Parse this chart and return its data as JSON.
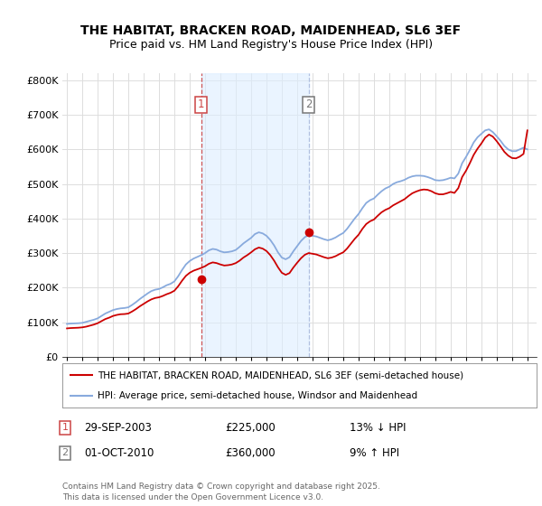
{
  "title1": "THE HABITAT, BRACKEN ROAD, MAIDENHEAD, SL6 3EF",
  "title2": "Price paid vs. HM Land Registry's House Price Index (HPI)",
  "legend_line1": "THE HABITAT, BRACKEN ROAD, MAIDENHEAD, SL6 3EF (semi-detached house)",
  "legend_line2": "HPI: Average price, semi-detached house, Windsor and Maidenhead",
  "transaction1": {
    "num": 1,
    "date": "29-SEP-2003",
    "price": 225000,
    "pct": "13%",
    "dir": "↓",
    "label": "HPI"
  },
  "transaction2": {
    "num": 2,
    "date": "01-OCT-2010",
    "price": 360000,
    "pct": "9%",
    "dir": "↑",
    "label": "HPI"
  },
  "footnote": "Contains HM Land Registry data © Crown copyright and database right 2025.\nThis data is licensed under the Open Government Licence v3.0.",
  "property_color": "#cc0000",
  "hpi_color": "#88aadd",
  "vline1_color": "#cc4444",
  "vline2_color": "#aabbdd",
  "shade_color": "#ddeeff",
  "ylim": [
    0,
    820000
  ],
  "yticks": [
    0,
    100000,
    200000,
    300000,
    400000,
    500000,
    600000,
    700000,
    800000
  ],
  "bg_color": "#ffffff",
  "grid_color": "#dddddd",
  "hpi_data": [
    [
      1995.0,
      95000
    ],
    [
      1995.25,
      96000
    ],
    [
      1995.5,
      96500
    ],
    [
      1995.75,
      97000
    ],
    [
      1996.0,
      98000
    ],
    [
      1996.25,
      101000
    ],
    [
      1996.5,
      104000
    ],
    [
      1996.75,
      107000
    ],
    [
      1997.0,
      111000
    ],
    [
      1997.25,
      118000
    ],
    [
      1997.5,
      125000
    ],
    [
      1997.75,
      130000
    ],
    [
      1998.0,
      135000
    ],
    [
      1998.25,
      138000
    ],
    [
      1998.5,
      140000
    ],
    [
      1998.75,
      141000
    ],
    [
      1999.0,
      143000
    ],
    [
      1999.25,
      150000
    ],
    [
      1999.5,
      158000
    ],
    [
      1999.75,
      167000
    ],
    [
      2000.0,
      175000
    ],
    [
      2000.25,
      183000
    ],
    [
      2000.5,
      190000
    ],
    [
      2000.75,
      194000
    ],
    [
      2001.0,
      196000
    ],
    [
      2001.25,
      201000
    ],
    [
      2001.5,
      207000
    ],
    [
      2001.75,
      211000
    ],
    [
      2002.0,
      218000
    ],
    [
      2002.25,
      233000
    ],
    [
      2002.5,
      251000
    ],
    [
      2002.75,
      267000
    ],
    [
      2003.0,
      277000
    ],
    [
      2003.25,
      284000
    ],
    [
      2003.5,
      289000
    ],
    [
      2003.75,
      294000
    ],
    [
      2004.0,
      300000
    ],
    [
      2004.25,
      308000
    ],
    [
      2004.5,
      312000
    ],
    [
      2004.75,
      310000
    ],
    [
      2005.0,
      305000
    ],
    [
      2005.25,
      302000
    ],
    [
      2005.5,
      303000
    ],
    [
      2005.75,
      305000
    ],
    [
      2006.0,
      309000
    ],
    [
      2006.25,
      318000
    ],
    [
      2006.5,
      328000
    ],
    [
      2006.75,
      336000
    ],
    [
      2007.0,
      344000
    ],
    [
      2007.25,
      355000
    ],
    [
      2007.5,
      360000
    ],
    [
      2007.75,
      357000
    ],
    [
      2008.0,
      350000
    ],
    [
      2008.25,
      338000
    ],
    [
      2008.5,
      322000
    ],
    [
      2008.75,
      302000
    ],
    [
      2009.0,
      287000
    ],
    [
      2009.25,
      282000
    ],
    [
      2009.5,
      288000
    ],
    [
      2009.75,
      305000
    ],
    [
      2010.0,
      320000
    ],
    [
      2010.25,
      335000
    ],
    [
      2010.5,
      346000
    ],
    [
      2010.75,
      352000
    ],
    [
      2011.0,
      350000
    ],
    [
      2011.25,
      348000
    ],
    [
      2011.5,
      344000
    ],
    [
      2011.75,
      340000
    ],
    [
      2012.0,
      337000
    ],
    [
      2012.25,
      340000
    ],
    [
      2012.5,
      345000
    ],
    [
      2012.75,
      352000
    ],
    [
      2013.0,
      358000
    ],
    [
      2013.25,
      370000
    ],
    [
      2013.5,
      385000
    ],
    [
      2013.75,
      400000
    ],
    [
      2014.0,
      413000
    ],
    [
      2014.25,
      430000
    ],
    [
      2014.5,
      445000
    ],
    [
      2014.75,
      453000
    ],
    [
      2015.0,
      458000
    ],
    [
      2015.25,
      469000
    ],
    [
      2015.5,
      479000
    ],
    [
      2015.75,
      487000
    ],
    [
      2016.0,
      492000
    ],
    [
      2016.25,
      500000
    ],
    [
      2016.5,
      505000
    ],
    [
      2016.75,
      508000
    ],
    [
      2017.0,
      512000
    ],
    [
      2017.25,
      518000
    ],
    [
      2017.5,
      522000
    ],
    [
      2017.75,
      524000
    ],
    [
      2018.0,
      524000
    ],
    [
      2018.25,
      523000
    ],
    [
      2018.5,
      520000
    ],
    [
      2018.75,
      516000
    ],
    [
      2019.0,
      511000
    ],
    [
      2019.25,
      510000
    ],
    [
      2019.5,
      511000
    ],
    [
      2019.75,
      514000
    ],
    [
      2020.0,
      518000
    ],
    [
      2020.25,
      516000
    ],
    [
      2020.5,
      530000
    ],
    [
      2020.75,
      560000
    ],
    [
      2021.0,
      578000
    ],
    [
      2021.25,
      598000
    ],
    [
      2021.5,
      620000
    ],
    [
      2021.75,
      635000
    ],
    [
      2022.0,
      645000
    ],
    [
      2022.25,
      655000
    ],
    [
      2022.5,
      658000
    ],
    [
      2022.75,
      650000
    ],
    [
      2023.0,
      638000
    ],
    [
      2023.25,
      625000
    ],
    [
      2023.5,
      610000
    ],
    [
      2023.75,
      600000
    ],
    [
      2024.0,
      595000
    ],
    [
      2024.25,
      595000
    ],
    [
      2024.5,
      600000
    ],
    [
      2024.75,
      605000
    ],
    [
      2025.0,
      600000
    ]
  ],
  "property_data": [
    [
      1995.0,
      82000
    ],
    [
      1995.25,
      83000
    ],
    [
      1995.5,
      83500
    ],
    [
      1995.75,
      84000
    ],
    [
      1996.0,
      85000
    ],
    [
      1996.25,
      87000
    ],
    [
      1996.5,
      90000
    ],
    [
      1996.75,
      93000
    ],
    [
      1997.0,
      97000
    ],
    [
      1997.25,
      103000
    ],
    [
      1997.5,
      109000
    ],
    [
      1997.75,
      113000
    ],
    [
      1998.0,
      118000
    ],
    [
      1998.25,
      121000
    ],
    [
      1998.5,
      123000
    ],
    [
      1998.75,
      123500
    ],
    [
      1999.0,
      125000
    ],
    [
      1999.25,
      131000
    ],
    [
      1999.5,
      138000
    ],
    [
      1999.75,
      146000
    ],
    [
      2000.0,
      153000
    ],
    [
      2000.25,
      160000
    ],
    [
      2000.5,
      166000
    ],
    [
      2000.75,
      170000
    ],
    [
      2001.0,
      172000
    ],
    [
      2001.25,
      176000
    ],
    [
      2001.5,
      181000
    ],
    [
      2001.75,
      185000
    ],
    [
      2002.0,
      191000
    ],
    [
      2002.25,
      204000
    ],
    [
      2002.5,
      220000
    ],
    [
      2002.75,
      234000
    ],
    [
      2003.0,
      243000
    ],
    [
      2003.25,
      249000
    ],
    [
      2003.5,
      253000
    ],
    [
      2003.75,
      257000
    ],
    [
      2004.0,
      262000
    ],
    [
      2004.25,
      269000
    ],
    [
      2004.5,
      273000
    ],
    [
      2004.75,
      271000
    ],
    [
      2005.0,
      267000
    ],
    [
      2005.25,
      264000
    ],
    [
      2005.5,
      265000
    ],
    [
      2005.75,
      267000
    ],
    [
      2006.0,
      271000
    ],
    [
      2006.25,
      278000
    ],
    [
      2006.5,
      287000
    ],
    [
      2006.75,
      294000
    ],
    [
      2007.0,
      302000
    ],
    [
      2007.25,
      311000
    ],
    [
      2007.5,
      316000
    ],
    [
      2007.75,
      313000
    ],
    [
      2008.0,
      306000
    ],
    [
      2008.25,
      294000
    ],
    [
      2008.5,
      278000
    ],
    [
      2008.75,
      259000
    ],
    [
      2009.0,
      243000
    ],
    [
      2009.25,
      237000
    ],
    [
      2009.5,
      242000
    ],
    [
      2009.75,
      258000
    ],
    [
      2010.0,
      272000
    ],
    [
      2010.25,
      285000
    ],
    [
      2010.5,
      295000
    ],
    [
      2010.75,
      300000
    ],
    [
      2011.0,
      298000
    ],
    [
      2011.25,
      296000
    ],
    [
      2011.5,
      292000
    ],
    [
      2011.75,
      288000
    ],
    [
      2012.0,
      285000
    ],
    [
      2012.25,
      287000
    ],
    [
      2012.5,
      291000
    ],
    [
      2012.75,
      297000
    ],
    [
      2013.0,
      302000
    ],
    [
      2013.25,
      313000
    ],
    [
      2013.5,
      327000
    ],
    [
      2013.75,
      341000
    ],
    [
      2014.0,
      353000
    ],
    [
      2014.25,
      370000
    ],
    [
      2014.5,
      384000
    ],
    [
      2014.75,
      392000
    ],
    [
      2015.0,
      397000
    ],
    [
      2015.25,
      408000
    ],
    [
      2015.5,
      418000
    ],
    [
      2015.75,
      425000
    ],
    [
      2016.0,
      430000
    ],
    [
      2016.25,
      438000
    ],
    [
      2016.5,
      444000
    ],
    [
      2016.75,
      450000
    ],
    [
      2017.0,
      456000
    ],
    [
      2017.25,
      465000
    ],
    [
      2017.5,
      473000
    ],
    [
      2017.75,
      478000
    ],
    [
      2018.0,
      482000
    ],
    [
      2018.25,
      484000
    ],
    [
      2018.5,
      483000
    ],
    [
      2018.75,
      479000
    ],
    [
      2019.0,
      473000
    ],
    [
      2019.25,
      470000
    ],
    [
      2019.5,
      470000
    ],
    [
      2019.75,
      473000
    ],
    [
      2020.0,
      477000
    ],
    [
      2020.25,
      474000
    ],
    [
      2020.5,
      488000
    ],
    [
      2020.75,
      520000
    ],
    [
      2021.0,
      538000
    ],
    [
      2021.25,
      560000
    ],
    [
      2021.5,
      584000
    ],
    [
      2021.75,
      602000
    ],
    [
      2022.0,
      617000
    ],
    [
      2022.25,
      634000
    ],
    [
      2022.5,
      643000
    ],
    [
      2022.75,
      637000
    ],
    [
      2023.0,
      624000
    ],
    [
      2023.25,
      609000
    ],
    [
      2023.5,
      593000
    ],
    [
      2023.75,
      582000
    ],
    [
      2024.0,
      575000
    ],
    [
      2024.25,
      574000
    ],
    [
      2024.5,
      579000
    ],
    [
      2024.75,
      587000
    ],
    [
      2025.0,
      655000
    ]
  ],
  "sale1_year": 2003.75,
  "sale1_price": 225000,
  "sale2_year": 2010.75,
  "sale2_price": 360000
}
